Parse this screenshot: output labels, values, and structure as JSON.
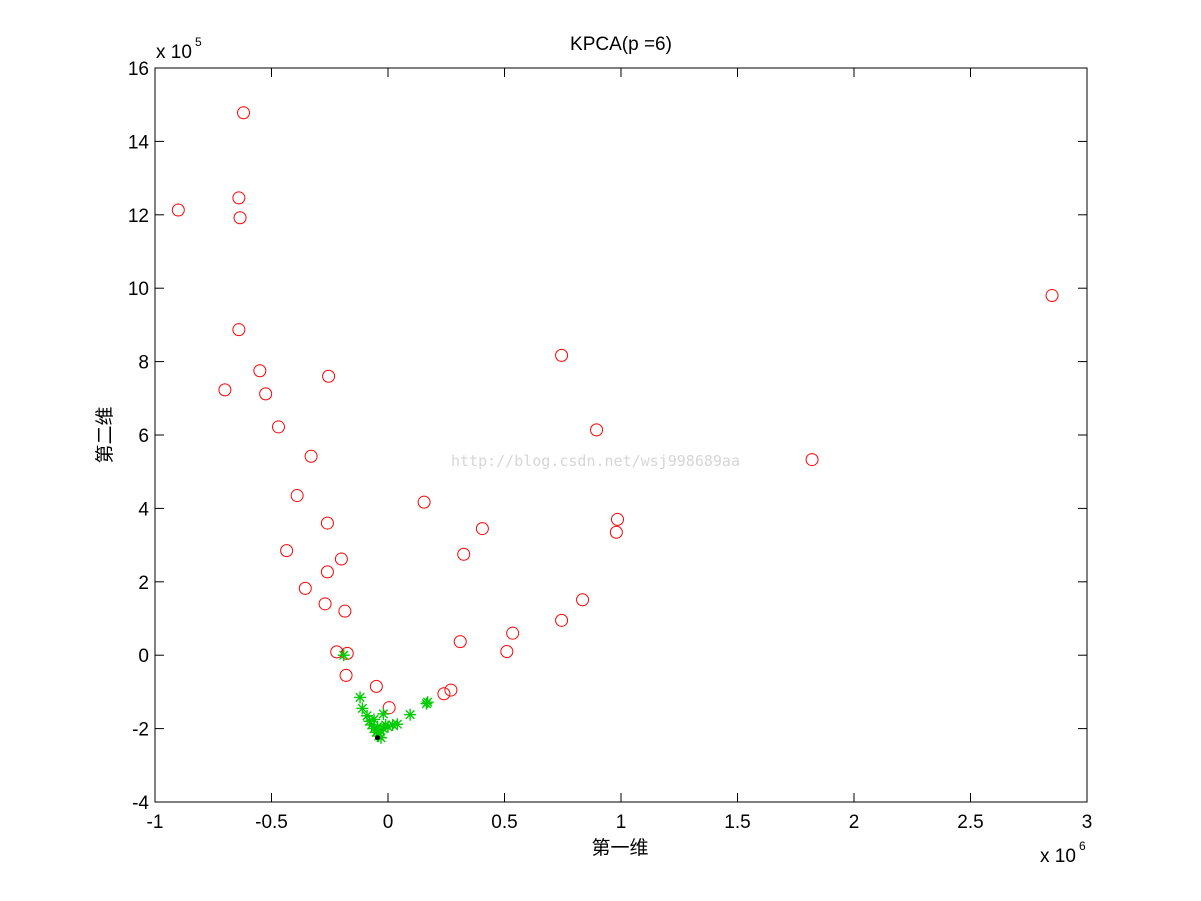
{
  "chart_data": {
    "type": "scatter",
    "title": "KPCA(p =6)",
    "xlabel": "第一维",
    "ylabel": "第二维",
    "x_exponent_label": "x 10",
    "x_exponent_power": "6",
    "y_exponent_label": "x 10",
    "y_exponent_power": "5",
    "xlim": [
      -1,
      3
    ],
    "ylim": [
      -4,
      16
    ],
    "xticks": [
      -1,
      -0.5,
      0,
      0.5,
      1,
      1.5,
      2,
      2.5,
      3
    ],
    "xtick_labels": [
      "-1",
      "-0.5",
      "0",
      "0.5",
      "1",
      "1.5",
      "2",
      "2.5",
      "3"
    ],
    "yticks": [
      -4,
      -2,
      0,
      2,
      4,
      6,
      8,
      10,
      12,
      14,
      16
    ],
    "ytick_labels": [
      "-4",
      "-2",
      "0",
      "2",
      "4",
      "6",
      "8",
      "10",
      "12",
      "14",
      "16"
    ],
    "grid": false,
    "watermark": "http://blog.csdn.net/wsj998689aa",
    "series": [
      {
        "marker": "circle",
        "color": "#ff0000",
        "points": [
          [
            -0.62,
            14.78
          ],
          [
            -0.64,
            12.46
          ],
          [
            -0.635,
            11.92
          ],
          [
            -0.9,
            12.13
          ],
          [
            -0.64,
            8.87
          ],
          [
            -0.55,
            7.75
          ],
          [
            -0.7,
            7.23
          ],
          [
            -0.525,
            7.12
          ],
          [
            -0.255,
            7.6
          ],
          [
            -0.47,
            6.22
          ],
          [
            -0.33,
            5.42
          ],
          [
            -0.39,
            4.35
          ],
          [
            -0.26,
            3.6
          ],
          [
            -0.435,
            2.85
          ],
          [
            -0.2,
            2.62
          ],
          [
            -0.26,
            2.27
          ],
          [
            -0.355,
            1.82
          ],
          [
            -0.27,
            1.4
          ],
          [
            -0.185,
            1.2
          ],
          [
            -0.22,
            0.09
          ],
          [
            -0.175,
            0.05
          ],
          [
            -0.18,
            -0.55
          ],
          [
            -0.05,
            -0.85
          ],
          [
            0.005,
            -1.43
          ],
          [
            0.155,
            4.17
          ],
          [
            0.325,
            2.75
          ],
          [
            0.405,
            3.45
          ],
          [
            0.31,
            0.37
          ],
          [
            0.535,
            0.6
          ],
          [
            0.51,
            0.1
          ],
          [
            0.27,
            -0.95
          ],
          [
            0.24,
            -1.05
          ],
          [
            0.745,
            8.17
          ],
          [
            0.895,
            6.14
          ],
          [
            0.98,
            3.35
          ],
          [
            0.985,
            3.7
          ],
          [
            0.835,
            1.51
          ],
          [
            0.745,
            0.95
          ],
          [
            1.82,
            5.33
          ],
          [
            2.85,
            9.8
          ]
        ]
      },
      {
        "marker": "star",
        "color": "#00cc00",
        "points": [
          [
            -0.19,
            0.0
          ],
          [
            -0.12,
            -1.15
          ],
          [
            -0.11,
            -1.45
          ],
          [
            -0.09,
            -1.65
          ],
          [
            -0.08,
            -1.8
          ],
          [
            -0.07,
            -1.9
          ],
          [
            -0.06,
            -2.0
          ],
          [
            -0.05,
            -2.1
          ],
          [
            -0.04,
            -2.2
          ],
          [
            -0.03,
            -2.25
          ],
          [
            -0.02,
            -2.0
          ],
          [
            -0.01,
            -1.9
          ],
          [
            -0.02,
            -1.6
          ],
          [
            0.0,
            -1.95
          ],
          [
            0.02,
            -1.9
          ],
          [
            0.04,
            -1.88
          ],
          [
            0.095,
            -1.62
          ],
          [
            0.165,
            -1.32
          ],
          [
            0.17,
            -1.28
          ],
          [
            -0.06,
            -1.75
          ],
          [
            -0.045,
            -1.95
          ],
          [
            -0.035,
            -2.05
          ]
        ]
      },
      {
        "marker": "dot",
        "color": "#000000",
        "points": [
          [
            -0.045,
            -2.25
          ]
        ]
      }
    ]
  }
}
